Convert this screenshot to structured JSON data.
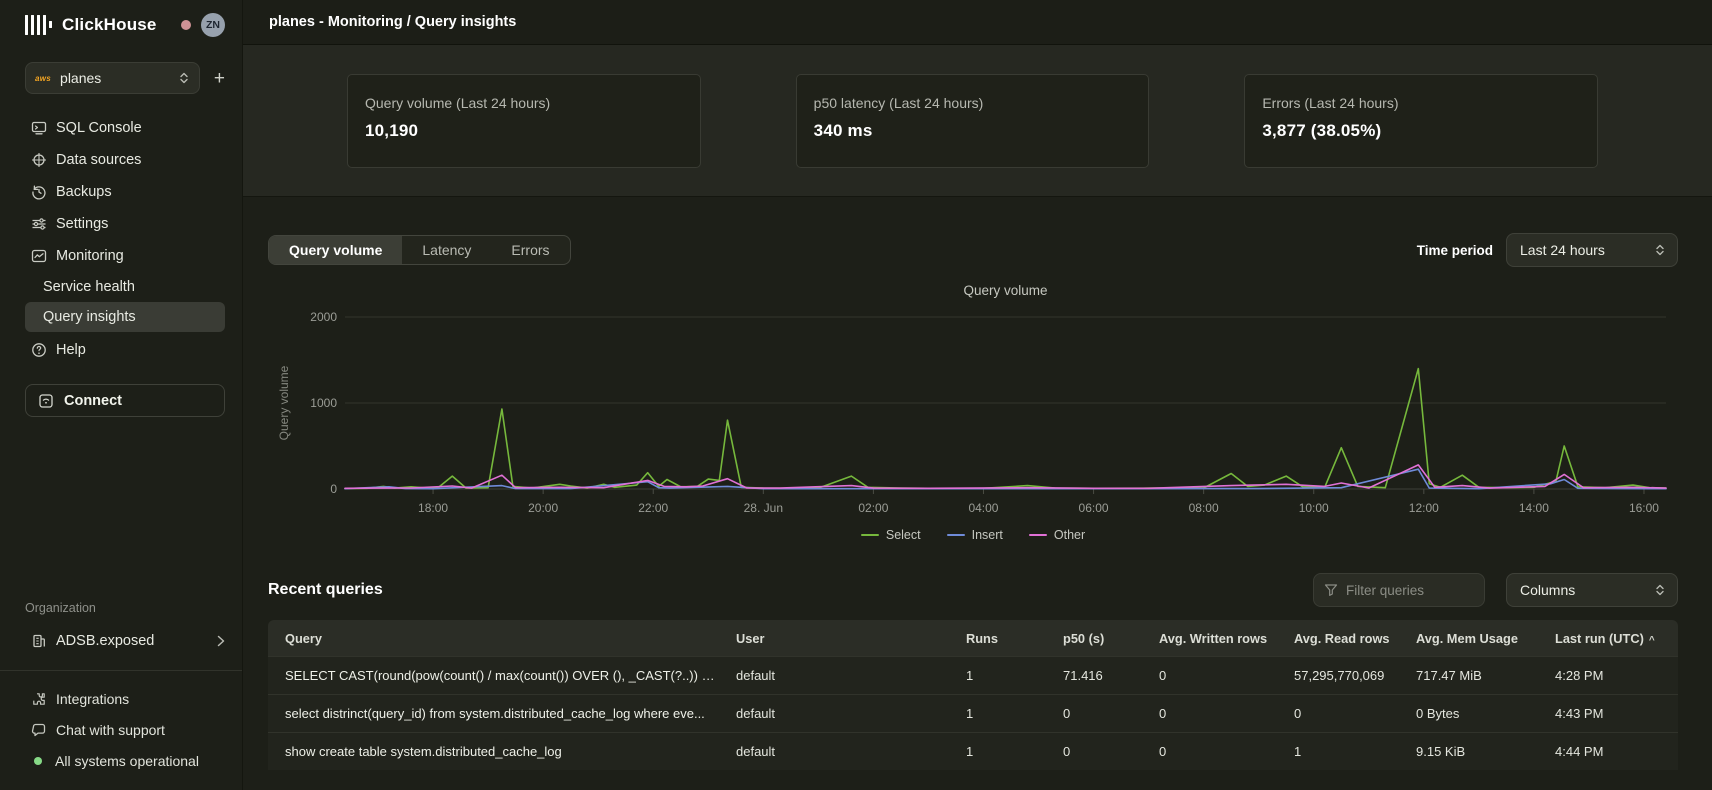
{
  "header": {
    "title": "planes - Monitoring / Query insights"
  },
  "sidebar": {
    "brand": "ClickHouse",
    "avatar_initials": "ZN",
    "service": {
      "name": "planes",
      "provider": "aws",
      "add_button": "+"
    },
    "items": [
      {
        "label": "SQL Console"
      },
      {
        "label": "Data sources"
      },
      {
        "label": "Backups"
      },
      {
        "label": "Settings"
      },
      {
        "label": "Monitoring"
      }
    ],
    "sub_items": [
      {
        "label": "Service health",
        "active": false
      },
      {
        "label": "Query insights",
        "active": true
      }
    ],
    "help_label": "Help",
    "connect_label": "Connect",
    "organization_label": "Organization",
    "organization_name": "ADSB.exposed",
    "footer_items": [
      {
        "label": "Integrations"
      },
      {
        "label": "Chat with support"
      },
      {
        "label": "All systems operational"
      }
    ]
  },
  "stats": [
    {
      "label": "Query volume (Last 24 hours)",
      "value": "10,190"
    },
    {
      "label": "p50 latency (Last 24 hours)",
      "value": "340 ms"
    },
    {
      "label": "Errors (Last 24 hours)",
      "value": "3,877 (38.05%)"
    }
  ],
  "tabs": [
    {
      "label": "Query volume",
      "active": true
    },
    {
      "label": "Latency",
      "active": false
    },
    {
      "label": "Errors",
      "active": false
    }
  ],
  "time_period": {
    "label": "Time period",
    "value": "Last 24 hours"
  },
  "chart_data": {
    "type": "line",
    "title": "Query volume",
    "ylabel": "Query volume",
    "ylim": [
      0,
      2000
    ],
    "yticks": [
      0,
      1000,
      2000
    ],
    "x_domain": [
      16.4,
      40.4
    ],
    "xticks": [
      {
        "t": 18,
        "label": "18:00"
      },
      {
        "t": 20,
        "label": "20:00"
      },
      {
        "t": 22,
        "label": "22:00"
      },
      {
        "t": 24,
        "label": "28. Jun"
      },
      {
        "t": 26,
        "label": "02:00"
      },
      {
        "t": 28,
        "label": "04:00"
      },
      {
        "t": 30,
        "label": "06:00"
      },
      {
        "t": 32,
        "label": "08:00"
      },
      {
        "t": 34,
        "label": "10:00"
      },
      {
        "t": 36,
        "label": "12:00"
      },
      {
        "t": 38,
        "label": "14:00"
      },
      {
        "t": 40,
        "label": "16:00"
      }
    ],
    "grid": true,
    "legend_position": "bottom",
    "series": [
      {
        "name": "Select",
        "color": "#76b83c",
        "points": [
          [
            16.4,
            5
          ],
          [
            16.8,
            8
          ],
          [
            17.1,
            30
          ],
          [
            17.3,
            10
          ],
          [
            17.6,
            25
          ],
          [
            17.9,
            12
          ],
          [
            18.1,
            20
          ],
          [
            18.35,
            150
          ],
          [
            18.6,
            10
          ],
          [
            19.0,
            15
          ],
          [
            19.25,
            930
          ],
          [
            19.45,
            30
          ],
          [
            19.8,
            10
          ],
          [
            20.3,
            55
          ],
          [
            20.5,
            35
          ],
          [
            20.8,
            10
          ],
          [
            21.1,
            55
          ],
          [
            21.3,
            20
          ],
          [
            21.7,
            45
          ],
          [
            21.9,
            190
          ],
          [
            22.1,
            30
          ],
          [
            22.25,
            110
          ],
          [
            22.5,
            25
          ],
          [
            22.8,
            30
          ],
          [
            23.0,
            115
          ],
          [
            23.2,
            100
          ],
          [
            23.35,
            800
          ],
          [
            23.6,
            20
          ],
          [
            24.0,
            10
          ],
          [
            24.5,
            8
          ],
          [
            25.0,
            10
          ],
          [
            25.6,
            150
          ],
          [
            25.9,
            20
          ],
          [
            26.5,
            10
          ],
          [
            27.0,
            8
          ],
          [
            28.0,
            8
          ],
          [
            28.8,
            40
          ],
          [
            29.3,
            10
          ],
          [
            30.0,
            8
          ],
          [
            31.0,
            10
          ],
          [
            32.0,
            12
          ],
          [
            32.5,
            180
          ],
          [
            32.8,
            30
          ],
          [
            33.1,
            45
          ],
          [
            33.5,
            150
          ],
          [
            33.8,
            25
          ],
          [
            34.2,
            20
          ],
          [
            34.5,
            480
          ],
          [
            34.8,
            30
          ],
          [
            35.3,
            15
          ],
          [
            35.9,
            1400
          ],
          [
            36.1,
            60
          ],
          [
            36.3,
            20
          ],
          [
            36.7,
            160
          ],
          [
            37.0,
            20
          ],
          [
            37.5,
            15
          ],
          [
            38.0,
            20
          ],
          [
            38.4,
            90
          ],
          [
            38.55,
            500
          ],
          [
            38.8,
            25
          ],
          [
            39.3,
            15
          ],
          [
            39.8,
            45
          ],
          [
            40.1,
            15
          ],
          [
            40.4,
            10
          ]
        ]
      },
      {
        "name": "Insert",
        "color": "#6f8bd8",
        "points": [
          [
            16.4,
            3
          ],
          [
            17.2,
            25
          ],
          [
            17.5,
            5
          ],
          [
            18.0,
            4
          ],
          [
            19.25,
            40
          ],
          [
            19.5,
            5
          ],
          [
            20.5,
            5
          ],
          [
            21.9,
            85
          ],
          [
            22.1,
            15
          ],
          [
            22.3,
            10
          ],
          [
            23.35,
            30
          ],
          [
            24.0,
            4
          ],
          [
            26.0,
            4
          ],
          [
            28.0,
            4
          ],
          [
            30.0,
            4
          ],
          [
            32.0,
            5
          ],
          [
            33.0,
            5
          ],
          [
            34.5,
            15
          ],
          [
            35.9,
            230
          ],
          [
            36.1,
            10
          ],
          [
            37.0,
            4
          ],
          [
            38.3,
            60
          ],
          [
            38.55,
            110
          ],
          [
            38.8,
            8
          ],
          [
            39.5,
            5
          ],
          [
            40.4,
            4
          ]
        ]
      },
      {
        "name": "Other",
        "color": "#e171d6",
        "points": [
          [
            16.4,
            8
          ],
          [
            17.0,
            10
          ],
          [
            17.6,
            12
          ],
          [
            18.35,
            35
          ],
          [
            18.7,
            10
          ],
          [
            19.25,
            160
          ],
          [
            19.5,
            15
          ],
          [
            20.3,
            20
          ],
          [
            21.1,
            15
          ],
          [
            21.9,
            100
          ],
          [
            22.2,
            30
          ],
          [
            22.6,
            25
          ],
          [
            22.9,
            35
          ],
          [
            23.35,
            120
          ],
          [
            23.7,
            12
          ],
          [
            24.3,
            10
          ],
          [
            25.6,
            40
          ],
          [
            26.0,
            10
          ],
          [
            27.0,
            8
          ],
          [
            28.8,
            15
          ],
          [
            30.0,
            8
          ],
          [
            31.0,
            8
          ],
          [
            32.5,
            40
          ],
          [
            33.5,
            55
          ],
          [
            34.2,
            30
          ],
          [
            34.5,
            70
          ],
          [
            35.0,
            12
          ],
          [
            35.9,
            280
          ],
          [
            36.2,
            20
          ],
          [
            36.7,
            40
          ],
          [
            37.2,
            10
          ],
          [
            38.2,
            30
          ],
          [
            38.55,
            170
          ],
          [
            38.9,
            15
          ],
          [
            39.8,
            20
          ],
          [
            40.4,
            10
          ]
        ]
      }
    ]
  },
  "recent": {
    "title": "Recent queries",
    "filter_placeholder": "Filter queries",
    "columns_label": "Columns",
    "table": {
      "headers": [
        "Query",
        "User",
        "Runs",
        "p50 (s)",
        "Avg. Written rows",
        "Avg. Read rows",
        "Avg. Mem Usage",
        "Last run (UTC)"
      ],
      "sort_indicator": "^",
      "rows": [
        {
          "query": "SELECT CAST(round(pow(count() / max(count()) OVER (), _CAST(?..)) * ...",
          "user": "default",
          "runs": "1",
          "p50": "71.416",
          "written": "0",
          "read": "57,295,770,069",
          "mem": "717.47 MiB",
          "last_run": "4:28 PM"
        },
        {
          "query": "select distrinct(query_id) from system.distributed_cache_log where eve...",
          "user": "default",
          "runs": "1",
          "p50": "0",
          "written": "0",
          "read": "0",
          "mem": "0 Bytes",
          "last_run": "4:43 PM"
        },
        {
          "query": "show create table system.distributed_cache_log",
          "user": "default",
          "runs": "1",
          "p50": "0",
          "written": "0",
          "read": "1",
          "mem": "9.15 KiB",
          "last_run": "4:44 PM"
        }
      ]
    }
  },
  "colors": {
    "select_series": "#76b83c",
    "insert_series": "#6f8bd8",
    "other_series": "#e171d6",
    "status_ok": "#86d986",
    "notification_dot": "#cf9295"
  }
}
